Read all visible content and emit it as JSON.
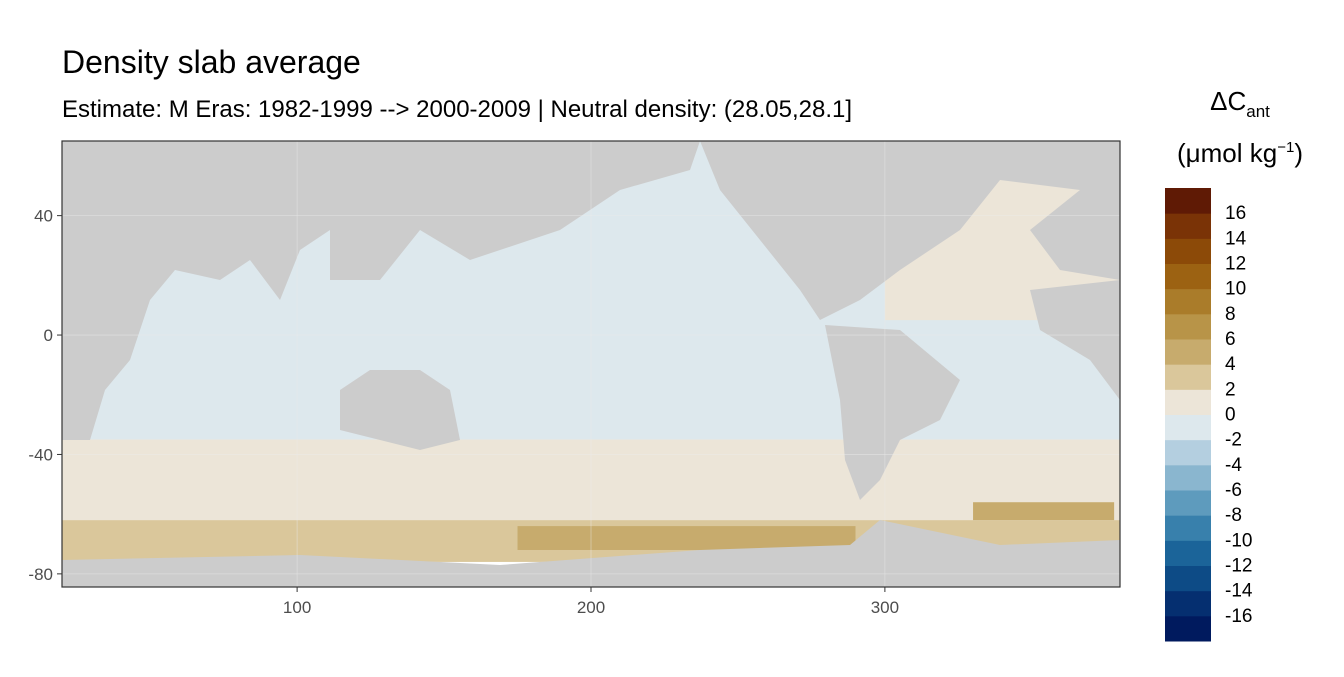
{
  "chart_data": {
    "type": "map",
    "title": "Density slab average",
    "subtitle": "Estimate: M Eras: 1982-1999 --> 2000-2009 | Neutral density: (28.05,28.1]",
    "xlim": [
      20,
      380
    ],
    "ylim": [
      -84.4,
      65
    ],
    "xticks": [
      100,
      200,
      300
    ],
    "yticks": [
      40,
      0,
      -40,
      -80
    ],
    "field": [
      {
        "lon": [
          20,
          380
        ],
        "lat": [
          -35,
          65
        ],
        "value": -1
      },
      {
        "lon": [
          300,
          380
        ],
        "lat": [
          5,
          62
        ],
        "value": 1
      },
      {
        "lon": [
          20,
          380
        ],
        "lat": [
          -62,
          -35
        ],
        "value": 1
      },
      {
        "lon": [
          20,
          380
        ],
        "lat": [
          -76,
          -62
        ],
        "value": 3
      },
      {
        "lon": [
          175,
          290
        ],
        "lat": [
          -72,
          -64
        ],
        "value": 5
      },
      {
        "lon": [
          330,
          378
        ],
        "lat": [
          -62,
          -56
        ],
        "value": 5
      }
    ],
    "legend": {
      "title": "ΔC",
      "title_sub": "ant",
      "unit": "(μmol kg",
      "unit_sup": "−1",
      "unit_end": ")",
      "levels": [
        -16,
        -14,
        -12,
        -10,
        -8,
        -6,
        -4,
        -2,
        0,
        2,
        4,
        6,
        8,
        10,
        12,
        14,
        16
      ],
      "colors": [
        "#001a5e",
        "#052f70",
        "#0d4b86",
        "#1b6499",
        "#3880ac",
        "#5e9bbd",
        "#8ab6cf",
        "#b4cfe0",
        "#dde8ed",
        "#ece5d8",
        "#dac79b",
        "#c7ab6d",
        "#b89448",
        "#aa7c2a",
        "#9c6212",
        "#8c4a08",
        "#7a3306",
        "#5f1a05"
      ]
    }
  }
}
